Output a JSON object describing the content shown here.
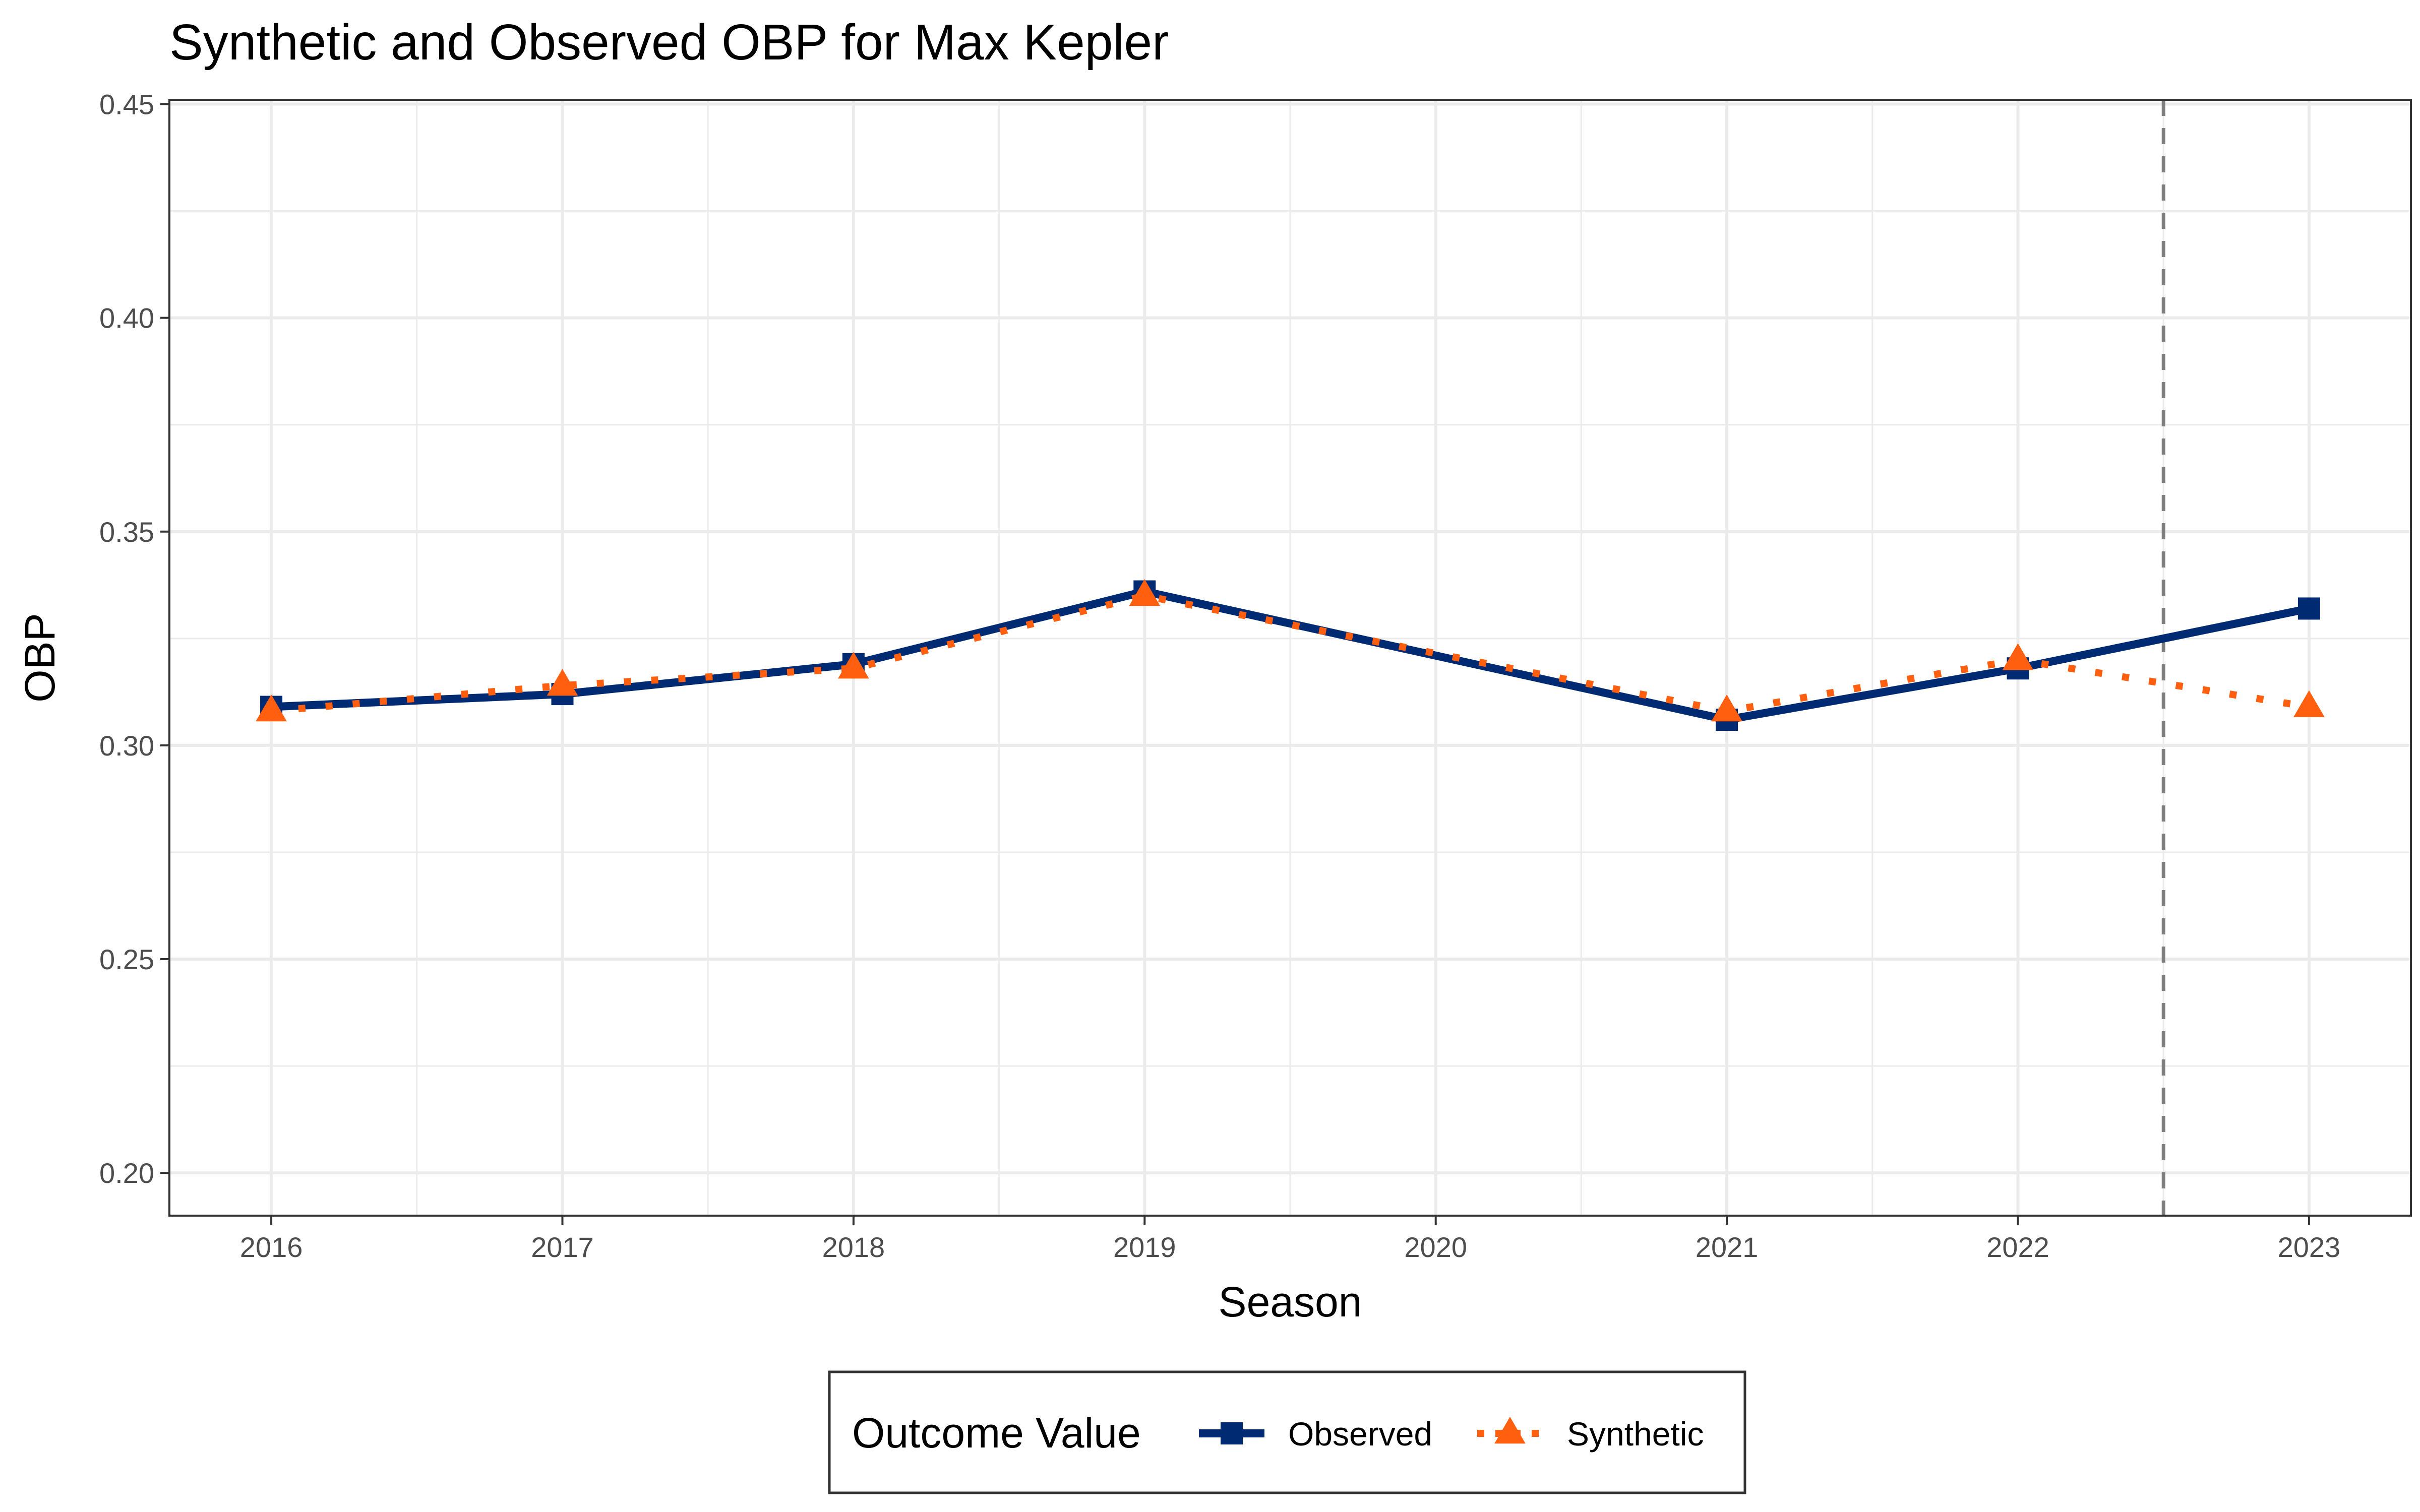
{
  "chart_data": {
    "type": "line",
    "title": "Synthetic and Observed OBP for Max Kepler",
    "xlabel": "Season",
    "ylabel": "OBP",
    "x": [
      2016,
      2017,
      2018,
      2019,
      2020,
      2021,
      2022,
      2023
    ],
    "xlim": [
      2015.65,
      2023.35
    ],
    "ylim": [
      0.19,
      0.451
    ],
    "x_ticks": [
      "2016",
      "2017",
      "2018",
      "2019",
      "2020",
      "2021",
      "2022",
      "2023"
    ],
    "y_ticks": [
      "0.20",
      "0.25",
      "0.30",
      "0.35",
      "0.40",
      "0.45"
    ],
    "y_tick_values": [
      0.2,
      0.25,
      0.3,
      0.35,
      0.4,
      0.45
    ],
    "grid": true,
    "reference_line": {
      "x": 2022.5,
      "style": "dashed",
      "color": "#7f7f7f"
    },
    "legend": {
      "title": "Outcome Value",
      "position": "bottom",
      "entries": [
        "Observed",
        "Synthetic"
      ]
    },
    "series": [
      {
        "name": "Observed",
        "color": "#002b73",
        "line_style": "solid",
        "marker": "square",
        "x": [
          2016,
          2017,
          2018,
          2019,
          2021,
          2022,
          2023
        ],
        "values": [
          0.309,
          0.312,
          0.319,
          0.336,
          0.306,
          0.318,
          0.332
        ]
      },
      {
        "name": "Synthetic",
        "color": "#ff5f0f",
        "line_style": "dotted",
        "marker": "triangle",
        "x": [
          2016,
          2017,
          2018,
          2019,
          2021,
          2022,
          2023
        ],
        "values": [
          0.308,
          0.314,
          0.318,
          0.335,
          0.308,
          0.32,
          0.309
        ]
      }
    ]
  }
}
